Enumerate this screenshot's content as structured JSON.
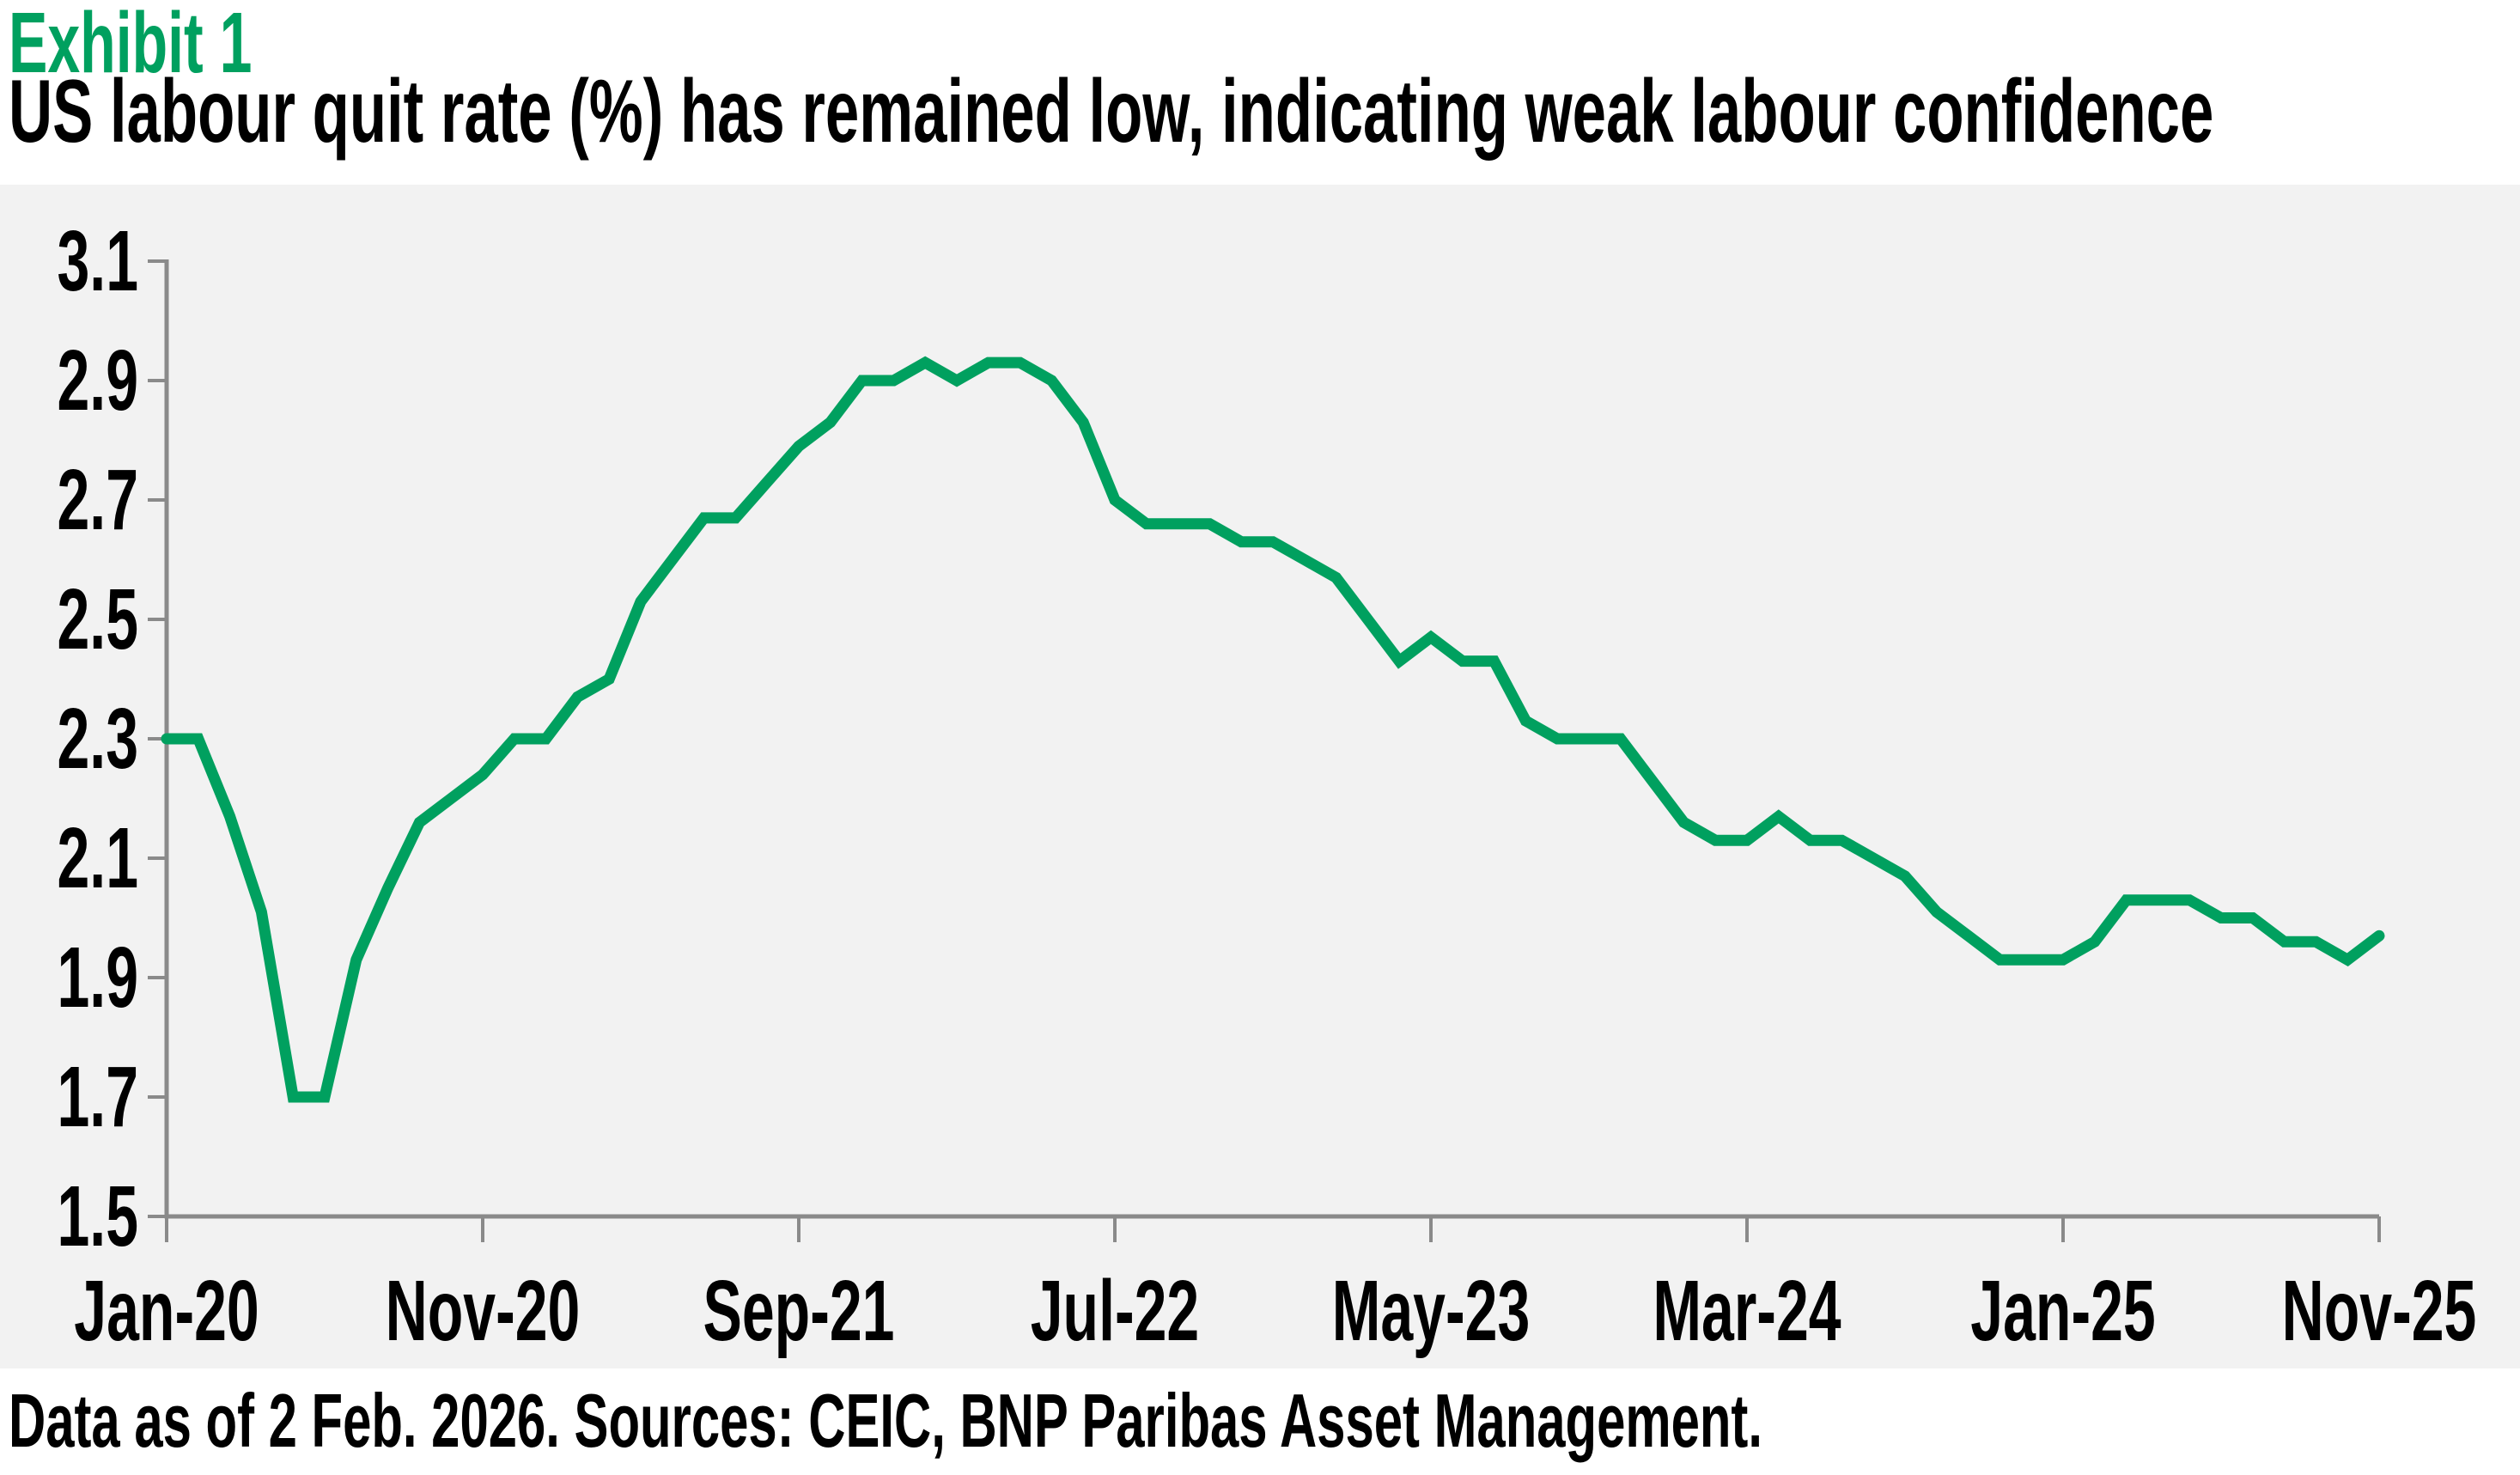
{
  "exhibit_label": "Exhibit 1",
  "title": "US labour quit rate (%) has remained low, indicating weak labour confidence",
  "footer": "Data as of 2 Feb. 2026. Sources: CEIC, BNP Paribas Asset Management.",
  "colors": {
    "accent_green": "#00a05f",
    "line_green": "#00a05f",
    "axis_gray": "#8a8a8a",
    "plot_background": "#f2f2f2",
    "text_black": "#000000"
  },
  "chart_data": {
    "type": "line",
    "series_name": "US labour quit rate (%)",
    "xlabel": "",
    "ylabel": "",
    "ylim": [
      1.5,
      3.1
    ],
    "y_ticks": [
      1.5,
      1.7,
      1.9,
      2.1,
      2.3,
      2.5,
      2.7,
      2.9,
      3.1
    ],
    "x_tick_labels": [
      "Jan-20",
      "Nov-20",
      "Sep-21",
      "Jul-22",
      "May-23",
      "Mar-24",
      "Jan-25",
      "Nov-25"
    ],
    "x_tick_month_indices": [
      0,
      10,
      20,
      30,
      40,
      50,
      60,
      70
    ],
    "grid": false,
    "legend": "none",
    "x": [
      "Jan-20",
      "Feb-20",
      "Mar-20",
      "Apr-20",
      "May-20",
      "Jun-20",
      "Jul-20",
      "Aug-20",
      "Sep-20",
      "Oct-20",
      "Nov-20",
      "Dec-20",
      "Jan-21",
      "Feb-21",
      "Mar-21",
      "Apr-21",
      "May-21",
      "Jun-21",
      "Jul-21",
      "Aug-21",
      "Sep-21",
      "Oct-21",
      "Nov-21",
      "Dec-21",
      "Jan-22",
      "Feb-22",
      "Mar-22",
      "Apr-22",
      "May-22",
      "Jun-22",
      "Jul-22",
      "Aug-22",
      "Sep-22",
      "Oct-22",
      "Nov-22",
      "Dec-22",
      "Jan-23",
      "Feb-23",
      "Mar-23",
      "Apr-23",
      "May-23",
      "Jun-23",
      "Jul-23",
      "Aug-23",
      "Sep-23",
      "Oct-23",
      "Nov-23",
      "Dec-23",
      "Jan-24",
      "Feb-24",
      "Mar-24",
      "Apr-24",
      "May-24",
      "Jun-24",
      "Jul-24",
      "Aug-24",
      "Sep-24",
      "Oct-24",
      "Nov-24",
      "Dec-24",
      "Jan-25",
      "Feb-25",
      "Mar-25",
      "Apr-25",
      "May-25",
      "Jun-25",
      "Jul-25",
      "Aug-25",
      "Sep-25",
      "Oct-25",
      "Nov-25"
    ],
    "values": [
      2.3,
      2.3,
      2.17,
      2.01,
      1.7,
      1.7,
      1.93,
      2.05,
      2.16,
      2.2,
      2.24,
      2.3,
      2.3,
      2.37,
      2.4,
      2.53,
      2.6,
      2.67,
      2.67,
      2.73,
      2.79,
      2.83,
      2.9,
      2.9,
      2.93,
      2.9,
      2.93,
      2.93,
      2.9,
      2.83,
      2.7,
      2.66,
      2.66,
      2.66,
      2.63,
      2.63,
      2.6,
      2.57,
      2.5,
      2.43,
      2.47,
      2.43,
      2.43,
      2.33,
      2.3,
      2.3,
      2.3,
      2.23,
      2.16,
      2.13,
      2.13,
      2.17,
      2.13,
      2.13,
      2.1,
      2.07,
      2.01,
      1.97,
      1.93,
      1.93,
      1.93,
      1.96,
      2.03,
      2.03,
      2.03,
      2.0,
      2.0,
      1.96,
      1.96,
      1.93,
      1.97
    ]
  }
}
